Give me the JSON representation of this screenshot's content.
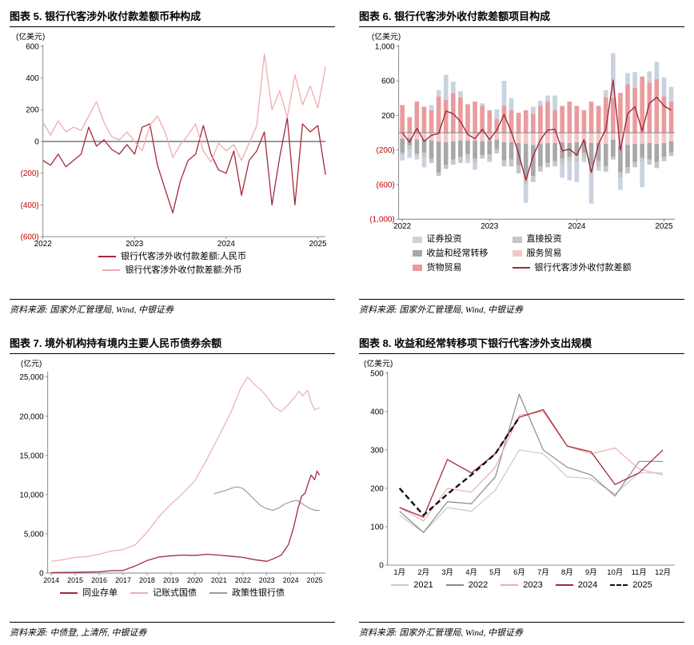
{
  "page": {
    "background": "#ffffff",
    "negative_tick_color": "#C00000"
  },
  "chart_data": [
    {
      "id": "chart5",
      "type": "line",
      "title": "图表 5. 银行代客涉外收付款差额币种构成",
      "unit": "(亿美元)",
      "source": "资料来源: 国家外汇管理局, Wind, 中银证券",
      "ylim": [
        -600,
        600
      ],
      "yticks": [
        600,
        400,
        200,
        0,
        -200,
        -400,
        -600
      ],
      "x_mode": "index",
      "x_tick_indices": [
        0,
        12,
        24,
        36
      ],
      "x_tick_labels": [
        "2022",
        "2023",
        "2024",
        "2025"
      ],
      "zero_line": true,
      "zero_color": "#333333",
      "margin_left": 42,
      "series": [
        {
          "name": "银行代客涉外收付款差额:人民币",
          "color": "#A2293A",
          "width": 1.3,
          "values": [
            -120,
            -150,
            -80,
            -160,
            -120,
            -80,
            90,
            -30,
            10,
            -50,
            -80,
            -20,
            -80,
            90,
            110,
            -150,
            -300,
            -450,
            -250,
            -120,
            -80,
            100,
            -80,
            -180,
            -200,
            -60,
            -340,
            -120,
            -60,
            60,
            -400,
            -100,
            150,
            -400,
            110,
            60,
            100,
            -210
          ]
        },
        {
          "name": "银行代客涉外收付款差额:外币",
          "color": "#EDACAF",
          "width": 1.3,
          "values": [
            120,
            40,
            130,
            60,
            90,
            70,
            160,
            250,
            120,
            30,
            10,
            60,
            0,
            -60,
            100,
            160,
            60,
            -100,
            -20,
            40,
            110,
            -60,
            -130,
            -10,
            -60,
            -20,
            -120,
            -10,
            100,
            550,
            200,
            320,
            150,
            420,
            230,
            350,
            210,
            470
          ]
        }
      ],
      "legend": [
        {
          "label": "银行代客涉外收付款差额:人民币",
          "color": "#A2293A",
          "type": "line"
        },
        {
          "label": "银行代客涉外收付款差额:外币",
          "color": "#EDACAF",
          "type": "line"
        }
      ]
    },
    {
      "id": "chart6",
      "type": "bar-line",
      "title": "图表 6. 银行代客涉外收付款差额项目构成",
      "unit": "(亿美元)",
      "source": "资料来源: 国家外汇管理局, Wind, 中银证券",
      "ylim": [
        -1000,
        1000
      ],
      "yticks": [
        1000,
        600,
        200,
        -200,
        -600,
        -1000
      ],
      "x_mode": "band",
      "n": 38,
      "x_tick_indices": [
        0,
        12,
        24,
        36
      ],
      "x_tick_labels": [
        "2022",
        "2023",
        "2024",
        "2025"
      ],
      "zero_line": true,
      "zero_color": "#808080",
      "margin_left": 50,
      "bars": [
        {
          "name": "货物贸易",
          "color": "#EA9B9E",
          "values": [
            320,
            180,
            360,
            300,
            260,
            420,
            380,
            460,
            410,
            330,
            360,
            310,
            260,
            160,
            310,
            260,
            230,
            260,
            220,
            310,
            360,
            260,
            310,
            360,
            310,
            260,
            360,
            310,
            410,
            400,
            460,
            560,
            520,
            650,
            580,
            620,
            420,
            360
          ]
        },
        {
          "name": "服务贸易",
          "color": "#F3C6C8",
          "values": [
            -70,
            -60,
            -80,
            -80,
            -90,
            -100,
            -110,
            -100,
            -90,
            -90,
            -90,
            -100,
            -90,
            -80,
            -110,
            -110,
            -120,
            -130,
            -140,
            -130,
            -120,
            -120,
            -110,
            -120,
            -110,
            -100,
            -120,
            -120,
            -130,
            -80,
            -150,
            -140,
            -130,
            -130,
            -120,
            -130,
            -120,
            -100
          ]
        },
        {
          "name": "收益和经常转移",
          "color": "#A8A8A8",
          "values": [
            -160,
            -90,
            -160,
            -150,
            -210,
            -360,
            -260,
            -210,
            -190,
            -160,
            -210,
            -160,
            -160,
            -110,
            -210,
            -200,
            -260,
            -390,
            -360,
            -260,
            -230,
            -210,
            -190,
            -160,
            -160,
            -130,
            -260,
            -210,
            -260,
            -200,
            -310,
            -260,
            -210,
            -160,
            -190,
            -210,
            -160,
            -130
          ]
        },
        {
          "name": "直接投资",
          "color": "#C6C6C6",
          "values": [
            -30,
            -40,
            -30,
            -60,
            -50,
            -40,
            -50,
            -60,
            -70,
            -60,
            -50,
            -40,
            -60,
            -50,
            -70,
            -80,
            -90,
            -80,
            -70,
            -60,
            -50,
            -60,
            -70,
            -60,
            -70,
            -60,
            -80,
            -70,
            -60,
            -30,
            -60,
            -70,
            -60,
            -50,
            -60,
            -70,
            -50,
            -40
          ]
        },
        {
          "name": "证券投资",
          "color": "#C9D2E0",
          "values": [
            -60,
            -100,
            -40,
            -110,
            60,
            70,
            290,
            130,
            70,
            -40,
            -80,
            30,
            -30,
            110,
            290,
            140,
            0,
            -210,
            80,
            60,
            70,
            170,
            -150,
            -210,
            -230,
            -50,
            -360,
            -40,
            80,
            520,
            -140,
            130,
            180,
            -290,
            130,
            200,
            220,
            170
          ]
        }
      ],
      "series": [
        {
          "name": "银行代客涉外收付款差额",
          "color": "#A2293A",
          "width": 1.4,
          "values": [
            0,
            -110,
            50,
            -100,
            -30,
            -10,
            250,
            220,
            130,
            -20,
            -70,
            40,
            -80,
            30,
            210,
            10,
            -240,
            -550,
            -270,
            -80,
            30,
            40,
            -210,
            -190,
            -260,
            -80,
            -460,
            -130,
            40,
            610,
            -200,
            220,
            300,
            20,
            340,
            410,
            310,
            260
          ]
        }
      ],
      "legend": [
        {
          "label": "证券投资",
          "color": "#C9D2E0",
          "type": "rect"
        },
        {
          "label": "直接投资",
          "color": "#C6C6C6",
          "type": "rect"
        },
        {
          "label": "收益和经常转移",
          "color": "#A8A8A8",
          "type": "rect"
        },
        {
          "label": "服务贸易",
          "color": "#F3C6C8",
          "type": "rect"
        },
        {
          "label": "货物贸易",
          "color": "#EA9B9E",
          "type": "rect"
        },
        {
          "label": "银行代客涉外收付款差额",
          "color": "#A2293A",
          "type": "line"
        }
      ]
    },
    {
      "id": "chart7",
      "type": "line",
      "title": "图表 7. 境外机构持有境内主要人民币债券余额",
      "unit": "(亿元)",
      "source": "资料来源: 中债登, 上清所, 中银证券",
      "ylim": [
        0,
        25500
      ],
      "yticks": [
        25000,
        20000,
        15000,
        10000,
        5000,
        0
      ],
      "x_mode": "linear",
      "xlim": [
        2013.85,
        2025.45
      ],
      "xticks": [
        2014,
        2015,
        2016,
        2017,
        2018,
        2019,
        2020,
        2021,
        2022,
        2023,
        2024,
        2025
      ],
      "zero_line": false,
      "margin_left": 48,
      "series": [
        {
          "name": "记账式国债",
          "color": "#EDACAF",
          "width": 1.2,
          "x": [
            2014,
            2014.5,
            2015,
            2015.5,
            2016,
            2016.5,
            2017,
            2017.5,
            2018,
            2018.5,
            2019,
            2019.5,
            2020,
            2020.5,
            2021,
            2021.5,
            2021.9,
            2022.2,
            2022.5,
            2022.8,
            2023,
            2023.3,
            2023.6,
            2023.9,
            2024.1,
            2024.35,
            2024.5,
            2024.7,
            2024.85,
            2025,
            2025.2
          ],
          "v": [
            1500,
            1700,
            2000,
            2100,
            2400,
            2800,
            3000,
            3600,
            5200,
            7200,
            8800,
            10200,
            11800,
            14500,
            17500,
            20500,
            23500,
            25000,
            24000,
            23200,
            22500,
            21200,
            20600,
            21500,
            22200,
            23200,
            22600,
            23300,
            21800,
            20800,
            21100
          ]
        },
        {
          "name": "政策性银行债",
          "color": "#9B9B9B",
          "width": 1.2,
          "x": [
            2020.8,
            2021,
            2021.25,
            2021.5,
            2021.75,
            2022,
            2022.25,
            2022.5,
            2022.75,
            2023,
            2023.25,
            2023.5,
            2023.75,
            2024,
            2024.25,
            2024.5,
            2024.75,
            2025,
            2025.2
          ],
          "v": [
            10100,
            10300,
            10500,
            10800,
            11000,
            10800,
            10100,
            9300,
            8600,
            8200,
            8000,
            8300,
            8800,
            9100,
            9300,
            8800,
            8300,
            8000,
            8000
          ]
        },
        {
          "name": "同业存单",
          "color": "#A2293A",
          "width": 1.3,
          "x": [
            2014,
            2015,
            2016,
            2016.5,
            2017,
            2017.5,
            2018,
            2018.5,
            2019,
            2019.5,
            2020,
            2020.5,
            2021,
            2021.5,
            2022,
            2022.5,
            2023,
            2023.3,
            2023.6,
            2023.9,
            2024.1,
            2024.3,
            2024.45,
            2024.6,
            2024.7,
            2024.85,
            2025,
            2025.1,
            2025.2
          ],
          "v": [
            60,
            100,
            160,
            300,
            320,
            900,
            1600,
            2050,
            2200,
            2300,
            2250,
            2400,
            2300,
            2150,
            2000,
            1700,
            1500,
            1850,
            2300,
            3600,
            5600,
            8200,
            9800,
            10200,
            11200,
            12500,
            11900,
            13000,
            12500
          ]
        }
      ],
      "legend": [
        {
          "label": "同业存单",
          "color": "#A2293A",
          "type": "line"
        },
        {
          "label": "记账式国债",
          "color": "#EDACAF",
          "type": "line"
        },
        {
          "label": "政策性银行债",
          "color": "#9B9B9B",
          "type": "line"
        }
      ]
    },
    {
      "id": "chart8",
      "type": "line",
      "title": "图表 8. 收益和经常转移项下银行代客涉外支出规模",
      "unit": "(亿美元)",
      "source": "资料来源: 国家外汇管理局, Wind, 中银证券",
      "ylim": [
        0,
        500
      ],
      "yticks": [
        500,
        400,
        300,
        200,
        100,
        0
      ],
      "x_mode": "band",
      "n": 12,
      "categories": [
        "1月",
        "2月",
        "3月",
        "4月",
        "5月",
        "6月",
        "7月",
        "8月",
        "9月",
        "10月",
        "11月",
        "12月"
      ],
      "zero_line": false,
      "margin_left": 36,
      "series": [
        {
          "name": "2021",
          "color": "#C9C9C9",
          "width": 1.2,
          "values": [
            130,
            85,
            150,
            140,
            195,
            300,
            290,
            230,
            225,
            185,
            240,
            240
          ]
        },
        {
          "name": "2022",
          "color": "#8A8A8A",
          "width": 1.2,
          "values": [
            140,
            85,
            165,
            160,
            230,
            445,
            300,
            255,
            235,
            180,
            270,
            270
          ]
        },
        {
          "name": "2023",
          "color": "#EDACAF",
          "width": 1.2,
          "values": [
            150,
            115,
            200,
            190,
            255,
            390,
            400,
            310,
            290,
            305,
            250,
            235
          ]
        },
        {
          "name": "2024",
          "color": "#A2293A",
          "width": 1.3,
          "values": [
            150,
            125,
            275,
            240,
            290,
            385,
            405,
            310,
            295,
            210,
            240,
            300
          ]
        },
        {
          "name": "2025",
          "color": "#111111",
          "width": 2.4,
          "dash": "7 4",
          "values": [
            200,
            130,
            185,
            235,
            290,
            385
          ]
        }
      ],
      "legend": [
        {
          "label": "2021",
          "color": "#C9C9C9",
          "type": "line"
        },
        {
          "label": "2022",
          "color": "#8A8A8A",
          "type": "line"
        },
        {
          "label": "2023",
          "color": "#EDACAF",
          "type": "line"
        },
        {
          "label": "2024",
          "color": "#A2293A",
          "type": "line"
        },
        {
          "label": "2025",
          "color": "#111111",
          "type": "dash"
        }
      ]
    }
  ]
}
